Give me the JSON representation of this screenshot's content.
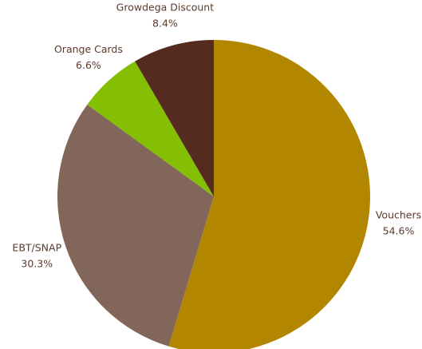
{
  "chart_data": {
    "type": "pie",
    "categories": [
      "Vouchers",
      "EBT/SNAP",
      "Orange Cards",
      "Growdega Discount"
    ],
    "values": [
      54.6,
      30.3,
      6.6,
      8.4
    ],
    "value_labels": [
      "54.6%",
      "30.3%",
      "6.6%",
      "8.4%"
    ],
    "colors": [
      "#b38600",
      "#82665a",
      "#84bf04",
      "#552b1f"
    ]
  }
}
